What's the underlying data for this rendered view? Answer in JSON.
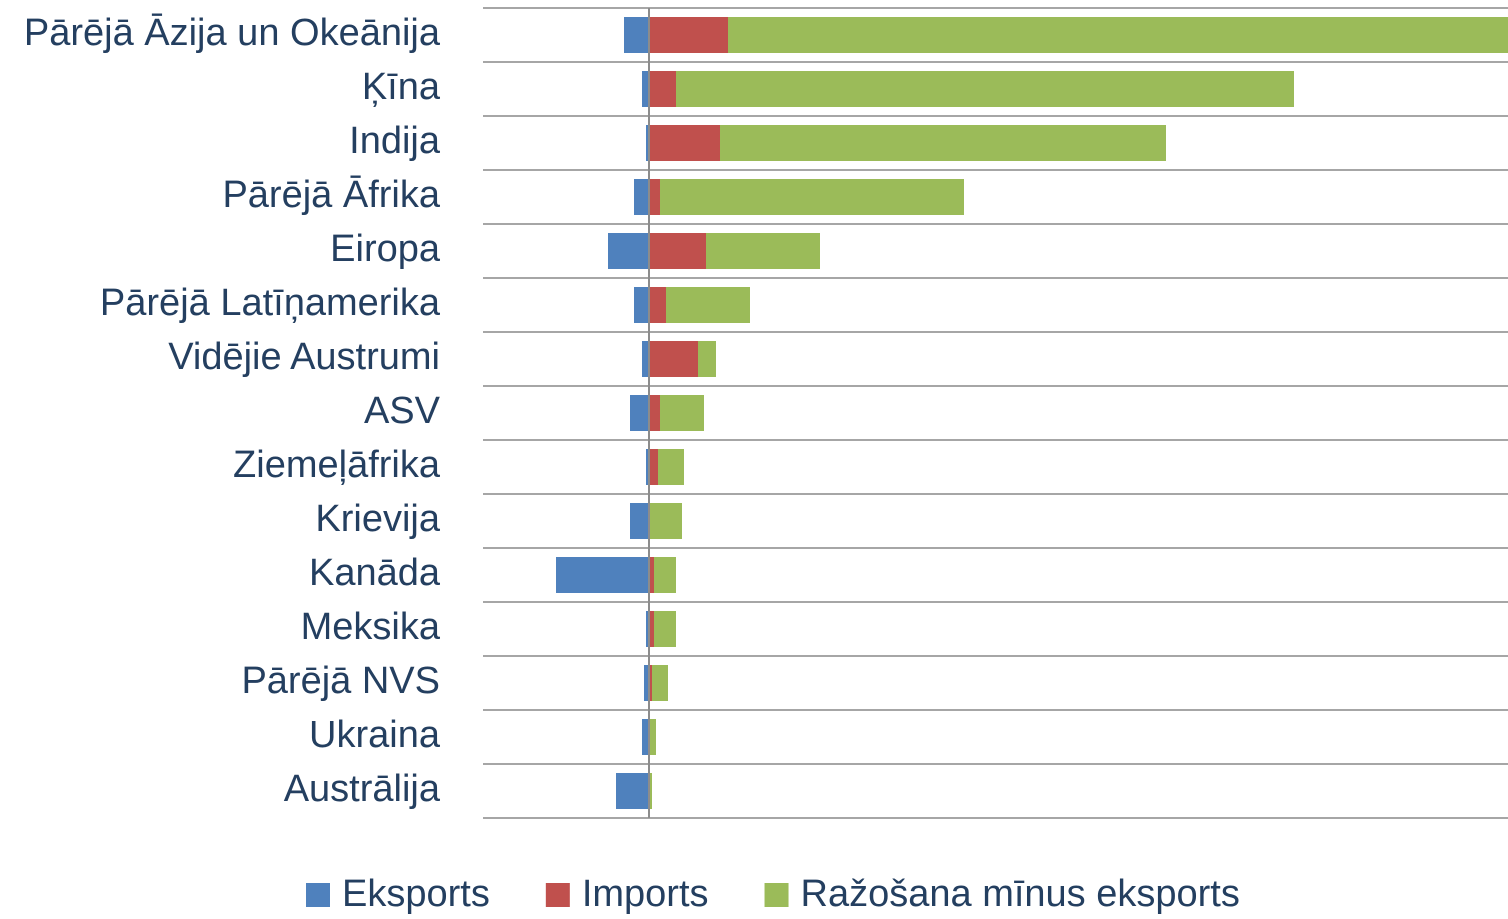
{
  "chart_data": {
    "type": "stacked_bar_horizontal",
    "categories": [
      "Pārējā Āzija un Okeānija",
      "Ķīna",
      "Indija",
      "Pārējā Āfrika",
      "Eiropa",
      "Pārējā Latīņamerika",
      "Vidējie Austrumi",
      "ASV",
      "Ziemeļāfrika",
      "Krievija",
      "Kanāda",
      "Meksika",
      "Pārējā NVS",
      "Ukraina",
      "Austrālija"
    ],
    "series": [
      {
        "name": "Eksports",
        "color": "#4f81bd",
        "values": [
          -2.5,
          -0.7,
          -0.3,
          -1.5,
          -4.1,
          -1.5,
          -0.7,
          -1.9,
          -0.3,
          -1.9,
          -9.3,
          -0.3,
          -0.5,
          -0.7,
          -3.3
        ]
      },
      {
        "name": "Imports",
        "color": "#c0504d",
        "values": [
          7.9,
          2.7,
          7.1,
          1.1,
          5.7,
          1.7,
          4.9,
          1.1,
          0.9,
          0,
          0.5,
          0.5,
          0.3,
          0.1,
          0
        ]
      },
      {
        "name": "Ražošana mīnus eksports",
        "color": "#9bbb59",
        "values": [
          78,
          61.8,
          44.6,
          30.4,
          11.4,
          8.4,
          1.8,
          4.4,
          2.6,
          3.3,
          2.2,
          2.2,
          1.6,
          0.6,
          0.3
        ]
      }
    ],
    "xlim": [
      -16.6,
      85.9
    ],
    "grid": true,
    "legend": "bottom"
  }
}
